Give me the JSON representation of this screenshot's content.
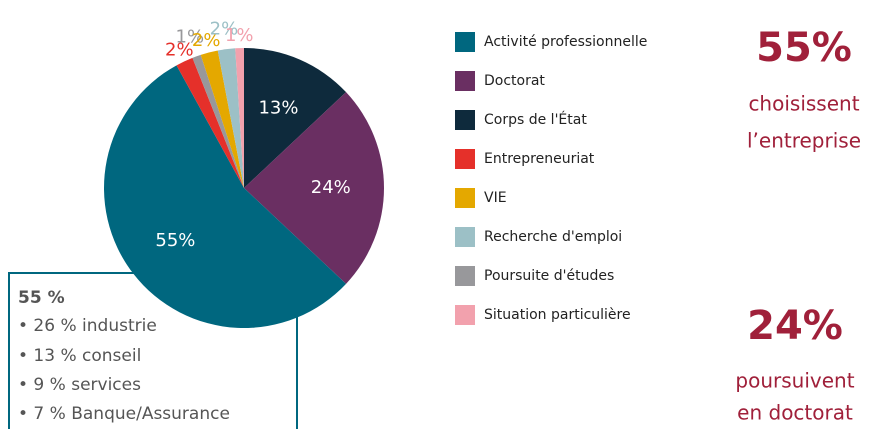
{
  "chart_data": {
    "type": "pie",
    "categories": [
      "Activité professionnelle",
      "Doctorat",
      "Corps de l'État",
      "Entrepreneuriat",
      "VIE",
      "Recherche d'emploi",
      "Poursuite d'études",
      "Situation particulière"
    ],
    "values": [
      55,
      24,
      13,
      2,
      2,
      2,
      1,
      1
    ],
    "value_labels": [
      "55%",
      "24%",
      "13%",
      "2%",
      "2%",
      "2%",
      "1%",
      "1%"
    ],
    "colors": [
      "#00677f",
      "#6a2f62",
      "#0e2a3c",
      "#e5302a",
      "#e4a800",
      "#9cc0c6",
      "#98989b",
      "#f2a1ad"
    ]
  },
  "highlights": [
    {
      "value": "55%",
      "lines": [
        "choisissent",
        "l’entreprise"
      ]
    },
    {
      "value": "24%",
      "lines": [
        "poursuivent",
        "en doctorat"
      ]
    }
  ],
  "detail_box": {
    "title": "55 %",
    "items": [
      "• 26 % industrie",
      "• 13 % conseil",
      "• 9 % services",
      "• 7 % Banque/Assurance"
    ]
  }
}
